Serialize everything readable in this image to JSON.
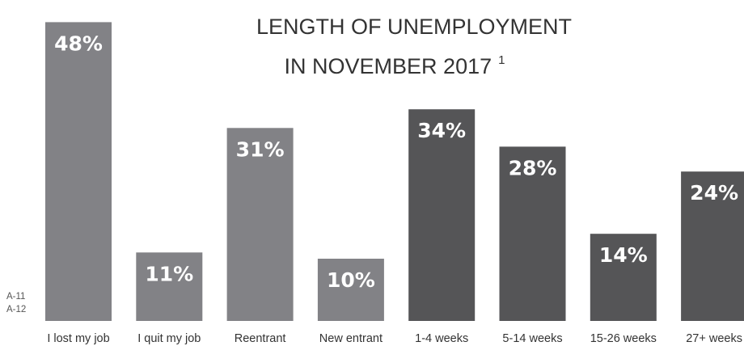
{
  "chart_data": {
    "type": "bar",
    "title": "LENGTH OF UNEMPLOYMENT",
    "title_line2": "IN NOVEMBER 2017",
    "footnote_marker": "1",
    "side_notes": [
      "A-11",
      "A-12"
    ],
    "categories": [
      "I lost my job",
      "I quit my job",
      "Reentrant",
      "New entrant",
      "1-4 weeks",
      "5-14 weeks",
      "15-26 weeks",
      "27+ weeks"
    ],
    "values": [
      48,
      11,
      31,
      10,
      34,
      28,
      14,
      24
    ],
    "value_labels": [
      "48%",
      "11%",
      "31%",
      "10%",
      "34%",
      "28%",
      "14%",
      "24%"
    ],
    "colors": [
      "#828286",
      "#828286",
      "#828286",
      "#828286",
      "#555557",
      "#555557",
      "#555557",
      "#555557"
    ],
    "ylim": [
      0,
      50
    ],
    "grid": false,
    "xlabel": "",
    "ylabel": ""
  }
}
